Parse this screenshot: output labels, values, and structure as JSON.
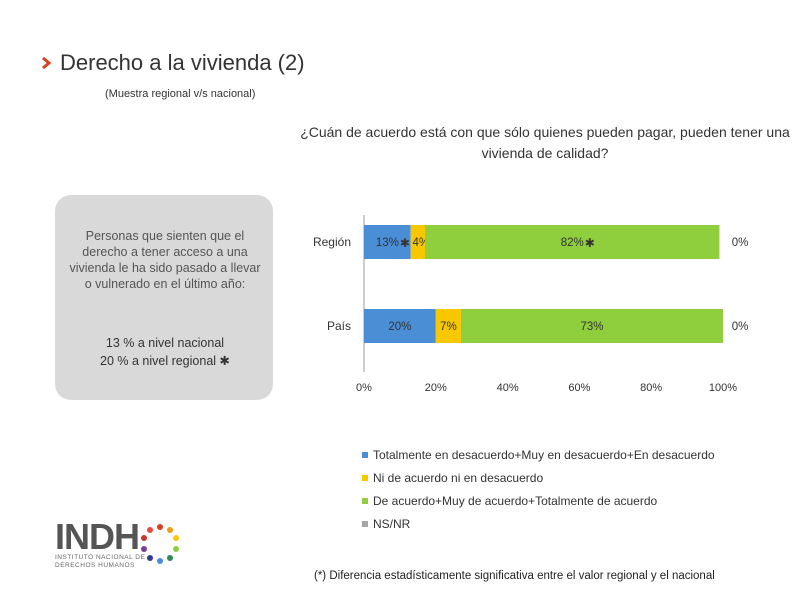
{
  "title": "Derecho a la vivienda (2)",
  "subtitle": "(Muestra regional v/s nacional)",
  "question": "¿Cuán de acuerdo está con que sólo quienes pueden pagar, pueden tener una vivienda de calidad?",
  "callout": {
    "text": "Personas que sienten que el derecho a tener acceso a una vivienda le ha sido pasado a llevar o vulnerado en el último año:",
    "line1": "13 % a nivel nacional",
    "line2": "20 % a nivel regional"
  },
  "colors": {
    "desacuerdo": "#4a8fd6",
    "ni": "#f7c800",
    "acuerdo": "#8fce3c",
    "nsnr": "#a6a6a6",
    "chevron": "#d8411f"
  },
  "chart_data": {
    "type": "bar",
    "orientation": "horizontal",
    "stacked": true,
    "categories": [
      "Región",
      "País"
    ],
    "series": [
      {
        "name": "Totalmente en desacuerdo+Muy en desacuerdo+En desacuerdo",
        "values": [
          13,
          20
        ],
        "labels": [
          "13%",
          "20%"
        ],
        "significant": [
          true,
          false
        ]
      },
      {
        "name": "Ni de acuerdo ni en desacuerdo",
        "values": [
          4,
          7
        ],
        "labels": [
          "4%",
          "7%"
        ],
        "significant": [
          true,
          false
        ]
      },
      {
        "name": "De acuerdo+Muy de acuerdo+Totalmente de acuerdo",
        "values": [
          82,
          73
        ],
        "labels": [
          "82%",
          "73%"
        ],
        "significant": [
          true,
          false
        ]
      },
      {
        "name": "NS/NR",
        "values": [
          0,
          0
        ],
        "labels": [
          "0%",
          "0%"
        ],
        "significant": [
          false,
          false
        ]
      }
    ],
    "xlim": [
      0,
      100
    ],
    "xticks": [
      "0%",
      "20%",
      "40%",
      "60%",
      "80%",
      "100%"
    ],
    "legend_position": "bottom"
  },
  "footnote": "(*) Diferencia estadísticamente significativa entre el valor regional y el nacional",
  "logo": {
    "word": "INDH",
    "line1": "INSTITUTO NACIONAL DE",
    "line2": "DERECHOS HUMANOS"
  }
}
